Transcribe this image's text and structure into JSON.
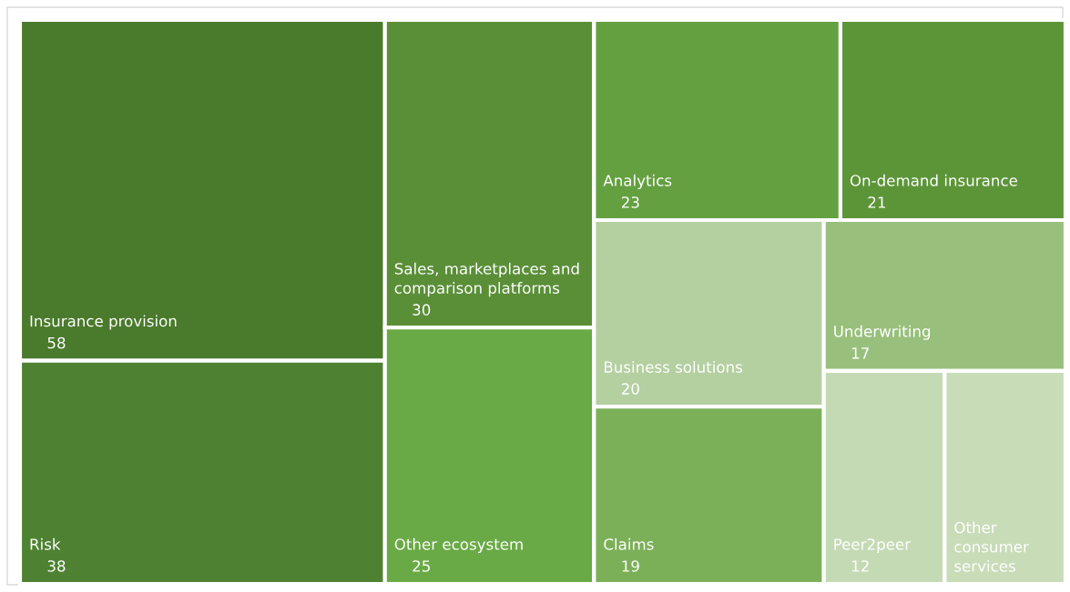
{
  "chart_data": {
    "type": "other",
    "categories": [
      "Insurance provision",
      "Risk",
      "Sales, marketplaces and comparison platforms",
      "Other ecosystem",
      "Analytics",
      "On-demand insurance",
      "Business solutions",
      "Claims",
      "Underwriting",
      "Peer2peer",
      "Other consumer services"
    ],
    "values": [
      58,
      38,
      30,
      25,
      23,
      21,
      20,
      19,
      17,
      12,
      null
    ],
    "colors": [
      "#4a7a2c",
      "#4e8232",
      "#5a8f38",
      "#6aaa46",
      "#64a040",
      "#5c9538",
      "#b4cfa0",
      "#7cb058",
      "#98c07c",
      "#c4dab4",
      "#c8dcb8"
    ],
    "data_labels": true
  }
}
